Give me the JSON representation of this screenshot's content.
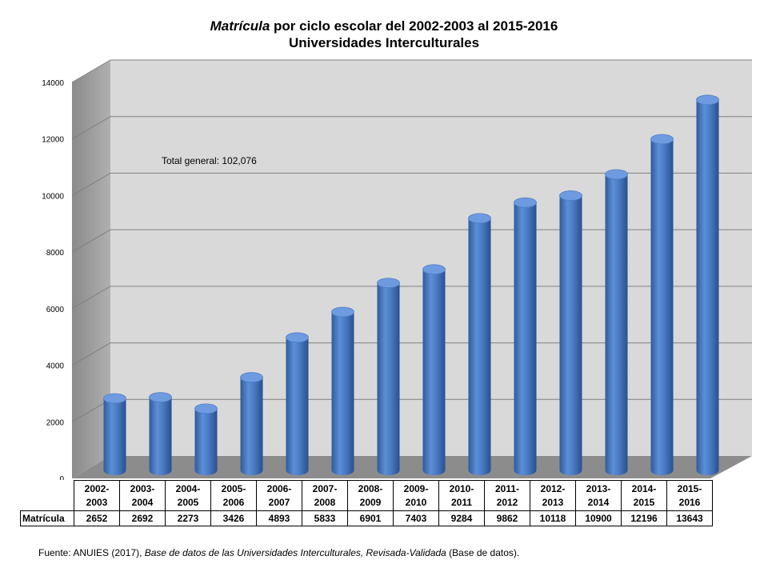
{
  "title": {
    "line1_italic": "Matrícula",
    "line1_rest": " por ciclo escolar del  2002-2003 al  2015-2016",
    "line2": "Universidades Interculturales"
  },
  "annotation": "Total general: 102,076",
  "source": {
    "prefix": "Fuente: ANUIES (2017),   ",
    "italic": "Base de datos de las Universidades  Interculturales, Revisada-Validada",
    "suffix": "  (Base de datos)."
  },
  "table": {
    "row_label": "Matrícula"
  },
  "colors": {
    "bar": "#4a7cc4",
    "bar_dark": "#2f5a9c",
    "bar_light": "#7aa3dd",
    "wall": "#d9d9d9",
    "floor": "#8c8c8c"
  },
  "chart_data": {
    "type": "bar",
    "categories": [
      "2002-2003",
      "2003-2004",
      "2004-2005",
      "2005-2006",
      "2006-2007",
      "2007-2008",
      "2008-2009",
      "2009-2010",
      "2010-2011",
      "2011-2012",
      "2012-2013",
      "2013-2014",
      "2014-2015",
      "2015-2016"
    ],
    "category_lines": [
      [
        "2002-",
        "2003"
      ],
      [
        "2003-",
        "2004"
      ],
      [
        "2004-",
        "2005"
      ],
      [
        "2005-",
        "2006"
      ],
      [
        "2006-",
        "2007"
      ],
      [
        "2007-",
        "2008"
      ],
      [
        "2008-",
        "2009"
      ],
      [
        "2009-",
        "2010"
      ],
      [
        "2010-",
        "2011"
      ],
      [
        "2011-",
        "2012"
      ],
      [
        "2012-",
        "2013"
      ],
      [
        "2013-",
        "2014"
      ],
      [
        "2014-",
        "2015"
      ],
      [
        "2015-",
        "2016"
      ]
    ],
    "series": [
      {
        "name": "Matrícula",
        "values": [
          2652,
          2692,
          2273,
          3426,
          4893,
          5833,
          6901,
          7403,
          9284,
          9862,
          10118,
          10900,
          12196,
          13643
        ]
      }
    ],
    "yticks": [
      0,
      2000,
      4000,
      6000,
      8000,
      10000,
      12000,
      14000
    ],
    "ylim": [
      0,
      14000
    ],
    "grid": true,
    "three_d": true
  }
}
